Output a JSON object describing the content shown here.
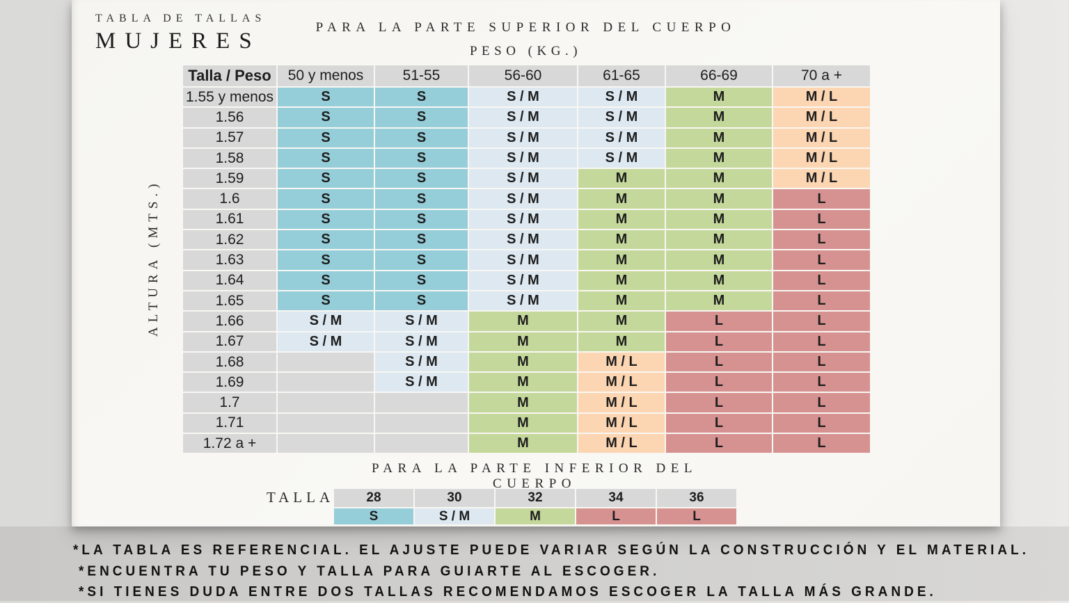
{
  "header": {
    "kicker": "TABLA DE TALLAS",
    "title": "MUJERES",
    "upper_section_title": "PARA LA PARTE SUPERIOR DEL CUERPO",
    "weight_axis_label": "PESO (KG.)",
    "height_axis_label": "ALTURA (MTS.)",
    "lower_section_title": "PARA LA PARTE INFERIOR DEL CUERPO"
  },
  "colors": {
    "S": "#95cdd9",
    "S/M": "#dde8f1",
    "M": "#c5d89b",
    "M/L": "#fcd5b2",
    "L": "#d69290",
    "empty": "#d9d9d9",
    "header_gray": "#d8d8d8"
  },
  "upper_table": {
    "corner_label": "Talla / Peso",
    "columns": [
      "50 y menos",
      "51-55",
      "56-60",
      "61-65",
      "66-69",
      "70 a +"
    ],
    "rows": [
      {
        "label": "1.55 y menos",
        "cells": [
          "S",
          "S",
          "S / M",
          "S / M",
          "M",
          "M / L"
        ]
      },
      {
        "label": "1.56",
        "cells": [
          "S",
          "S",
          "S / M",
          "S / M",
          "M",
          "M / L"
        ]
      },
      {
        "label": "1.57",
        "cells": [
          "S",
          "S",
          "S / M",
          "S / M",
          "M",
          "M / L"
        ]
      },
      {
        "label": "1.58",
        "cells": [
          "S",
          "S",
          "S / M",
          "S / M",
          "M",
          "M / L"
        ]
      },
      {
        "label": "1.59",
        "cells": [
          "S",
          "S",
          "S / M",
          "M",
          "M",
          "M / L"
        ]
      },
      {
        "label": "1.6",
        "cells": [
          "S",
          "S",
          "S / M",
          "M",
          "M",
          "L"
        ]
      },
      {
        "label": "1.61",
        "cells": [
          "S",
          "S",
          "S / M",
          "M",
          "M",
          "L"
        ]
      },
      {
        "label": "1.62",
        "cells": [
          "S",
          "S",
          "S / M",
          "M",
          "M",
          "L"
        ]
      },
      {
        "label": "1.63",
        "cells": [
          "S",
          "S",
          "S / M",
          "M",
          "M",
          "L"
        ]
      },
      {
        "label": "1.64",
        "cells": [
          "S",
          "S",
          "S / M",
          "M",
          "M",
          "L"
        ]
      },
      {
        "label": "1.65",
        "cells": [
          "S",
          "S",
          "S / M",
          "M",
          "M",
          "L"
        ]
      },
      {
        "label": "1.66",
        "cells": [
          "S / M",
          "S / M",
          "M",
          "M",
          "L",
          "L"
        ]
      },
      {
        "label": "1.67",
        "cells": [
          "S / M",
          "S / M",
          "M",
          "M",
          "L",
          "L"
        ]
      },
      {
        "label": "1.68",
        "cells": [
          "",
          "S / M",
          "M",
          "M / L",
          "L",
          "L"
        ]
      },
      {
        "label": "1.69",
        "cells": [
          "",
          "S / M",
          "M",
          "M / L",
          "L",
          "L"
        ]
      },
      {
        "label": "1.7",
        "cells": [
          "",
          "",
          "M",
          "M / L",
          "L",
          "L"
        ]
      },
      {
        "label": "1.71",
        "cells": [
          "",
          "",
          "M",
          "M / L",
          "L",
          "L"
        ]
      },
      {
        "label": "1.72 a +",
        "cells": [
          "",
          "",
          "M",
          "M / L",
          "L",
          "L"
        ]
      }
    ]
  },
  "lower_table": {
    "label": "TALLA",
    "columns": [
      "28",
      "30",
      "32",
      "34",
      "36"
    ],
    "values": [
      "S",
      "S / M",
      "M",
      "L",
      "L"
    ]
  },
  "notes": [
    "*LA TABLA ES REFERENCIAL. EL AJUSTE PUEDE VARIAR SEGÚN LA CONSTRUCCIÓN Y EL MATERIAL.",
    "*ENCUENTRA TU PESO Y TALLA PARA GUIARTE AL ESCOGER.",
    "*SI TIENES DUDA ENTRE DOS TALLAS RECOMENDAMOS ESCOGER LA TALLA MÁS GRANDE."
  ]
}
